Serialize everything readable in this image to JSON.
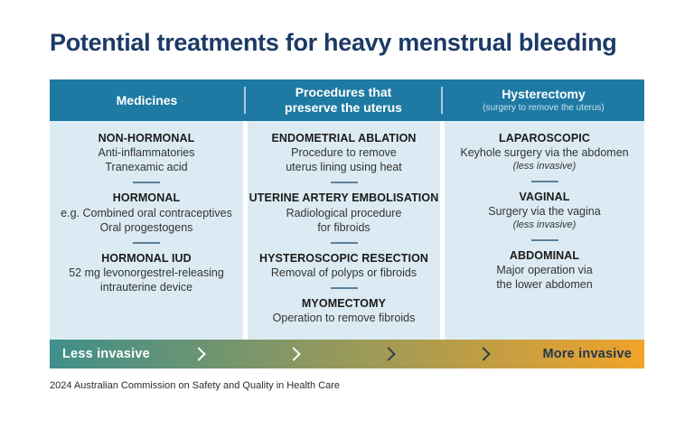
{
  "title": "Potential treatments for heavy menstrual bleeding",
  "columns": [
    {
      "header": "Medicines",
      "items": [
        {
          "heading": "NON-HORMONAL",
          "lines": [
            "Anti-inflammatories",
            "Tranexamic acid"
          ]
        },
        {
          "heading": "HORMONAL",
          "lines": [
            "e.g. Combined oral contraceptives",
            "Oral progestogens"
          ]
        },
        {
          "heading": "HORMONAL IUD",
          "lines": [
            "52 mg levonorgestrel-releasing",
            "intrauterine device"
          ]
        }
      ]
    },
    {
      "header_line1": "Procedures that",
      "header_line2": "preserve the uterus",
      "items": [
        {
          "heading": "ENDOMETRIAL ABLATION",
          "lines": [
            "Procedure to remove",
            "uterus lining using heat"
          ]
        },
        {
          "heading": "UTERINE ARTERY EMBOLISATION",
          "lines": [
            "Radiological procedure",
            "for fibroids"
          ]
        },
        {
          "heading": "HYSTEROSCOPIC RESECTION",
          "lines": [
            "Removal of polyps or fibroids"
          ]
        },
        {
          "heading": "MYOMECTOMY",
          "lines": [
            "Operation to remove fibroids"
          ]
        }
      ]
    },
    {
      "header": "Hysterectomy",
      "subheader": "(surgery to remove the uterus)",
      "items": [
        {
          "heading": "LAPAROSCOPIC",
          "lines": [
            "Keyhole surgery via the abdomen"
          ],
          "note": "(less invasive)"
        },
        {
          "heading": "VAGINAL",
          "lines": [
            "Surgery via the vagina"
          ],
          "note": "(less invasive)"
        },
        {
          "heading": "ABDOMINAL",
          "lines": [
            "Major operation via",
            "the lower abdomen"
          ]
        }
      ]
    }
  ],
  "invasiveness_scale": {
    "left_label": "Less invasive",
    "right_label": "More invasive",
    "gradient_start": "#3f8f8b",
    "gradient_end": "#f0a32a",
    "chevron_colors": [
      "#ffffff",
      "#ffffff",
      "#2e3f4c",
      "#2e3f4c"
    ]
  },
  "footer": {
    "credit": "2024 Australian Commission on Safety and Quality in Health Care"
  },
  "colors": {
    "title_text": "#1c3a66",
    "header_bar": "#1f7aa3",
    "header_text": "#ffffff",
    "header_subtext": "#c3e2ef",
    "panel_background": "#dcebf3",
    "divider": "#5b8099",
    "body_text": "#333333"
  }
}
